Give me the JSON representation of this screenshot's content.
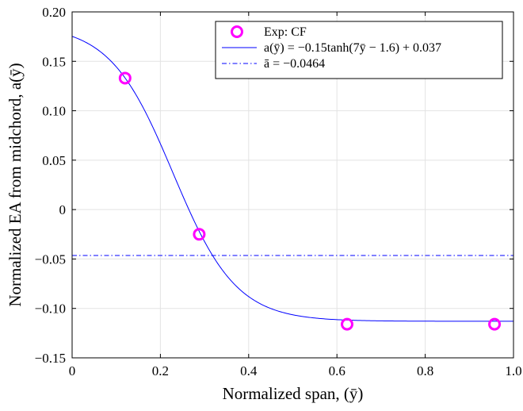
{
  "chart_data": {
    "type": "line",
    "xlabel": "Normalized span, (ȳ)",
    "ylabel": "Normalized EA from midchord, a(ȳ)",
    "xlim": [
      0,
      1.0
    ],
    "ylim": [
      -0.15,
      0.2
    ],
    "x_ticks": [
      "0",
      "0.2",
      "0.4",
      "0.6",
      "0.8",
      "1.0"
    ],
    "y_ticks": [
      "−0.15",
      "−0.10",
      "−0.05",
      "0",
      "0.05",
      "0.10",
      "0.15",
      "0.20"
    ],
    "grid": true,
    "legend_position": "top-right",
    "series": [
      {
        "name": "Exp: CF",
        "kind": "scatter",
        "marker": "circle-open",
        "color": "#ff00ff",
        "x": [
          0.12,
          0.288,
          0.623,
          0.957
        ],
        "y": [
          0.133,
          -0.025,
          -0.116,
          -0.116
        ]
      },
      {
        "name": "a(ȳ) = −0.15tanh(7ȳ − 1.6) + 0.037",
        "kind": "function",
        "color": "#0000ff",
        "amplitude": -0.15,
        "slope": 7,
        "shift": -1.6,
        "offset": 0.037
      },
      {
        "name": "ā = −0.0464",
        "kind": "hline",
        "color": "#0000ff",
        "style": "dash-dot",
        "y": -0.0464
      }
    ]
  }
}
